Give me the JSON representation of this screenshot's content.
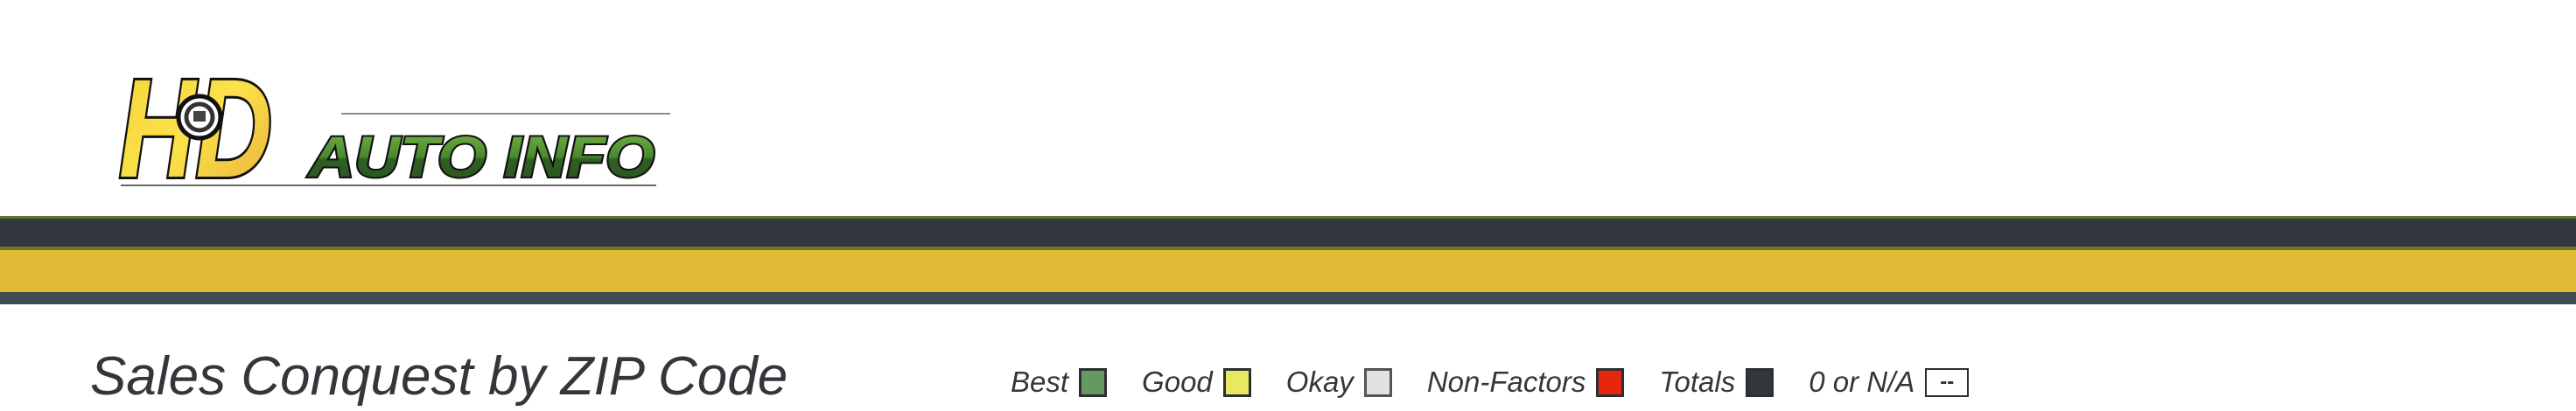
{
  "logo": {
    "text_main": "HD",
    "text_sub": "AUTO INFO"
  },
  "colors": {
    "brand_yellow": "#e3ba35",
    "brand_dark": "#32383d",
    "brand_green": "#4a8a2e"
  },
  "page": {
    "title": "Sales Conquest by ZIP Code"
  },
  "legend": [
    {
      "label": "Best",
      "color": "#649a61"
    },
    {
      "label": "Good",
      "color": "#e8e862"
    },
    {
      "label": "Okay",
      "color": "#e2e2e2"
    },
    {
      "label": "Non-Factors",
      "color": "#e8260e"
    },
    {
      "label": "Totals",
      "color": "#32373b"
    },
    {
      "label": "0 or N/A",
      "color": "#ffffff",
      "box_text": "--"
    }
  ]
}
